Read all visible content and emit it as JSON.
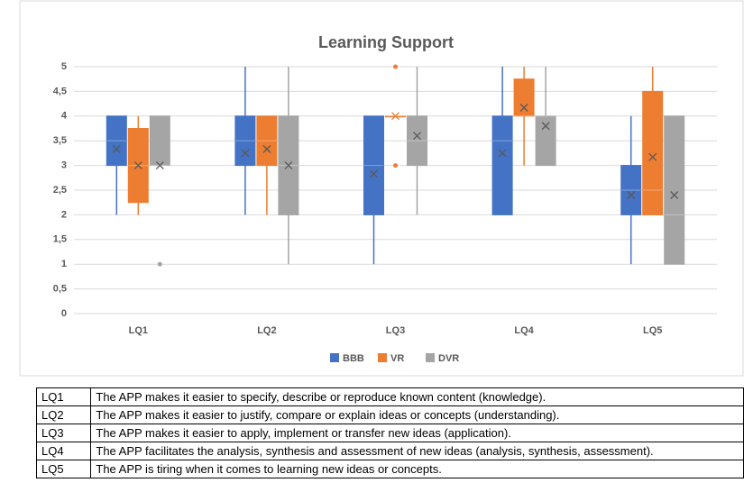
{
  "chart_data": {
    "type": "box",
    "title": "Learning Support",
    "categories": [
      "LQ1",
      "LQ2",
      "LQ3",
      "LQ4",
      "LQ5"
    ],
    "ylim": [
      0,
      5
    ],
    "yticks": [
      0,
      {
        "value": 0.5,
        "label": "0,5"
      },
      1,
      {
        "value": 1.5,
        "label": "1,5"
      },
      2,
      {
        "value": 2.5,
        "label": "2,5"
      },
      3,
      {
        "value": 3.5,
        "label": "3,5"
      },
      4,
      {
        "value": 4.5,
        "label": "4,5"
      },
      5
    ],
    "grid": true,
    "legend": "bottom",
    "series": [
      {
        "name": "BBB",
        "color": "#4472c4",
        "min": [
          2,
          2,
          1,
          2,
          1
        ],
        "q1": [
          3,
          3,
          2,
          2,
          2
        ],
        "median": [
          3.5,
          3.5,
          3,
          3.5,
          2.5
        ],
        "q3": [
          4,
          4,
          4,
          4,
          3
        ],
        "max": [
          4,
          5,
          4,
          5,
          4
        ],
        "mean": [
          3.33,
          3.25,
          2.83,
          3.25,
          2.4
        ],
        "outliers": [
          [],
          [],
          [],
          [],
          []
        ]
      },
      {
        "name": "VR",
        "color": "#ed7d31",
        "min": [
          2,
          2,
          4,
          3,
          2
        ],
        "q1": [
          2.25,
          3,
          4,
          4,
          2
        ],
        "median": [
          3,
          3.5,
          4,
          4,
          2.5
        ],
        "q3": [
          3.75,
          4,
          4,
          4.75,
          4.5
        ],
        "max": [
          4,
          4,
          4,
          5,
          5
        ],
        "mean": [
          3,
          3.33,
          4,
          4.17,
          3.17
        ],
        "outliers": [
          [],
          [],
          [
            5,
            3
          ],
          [],
          []
        ]
      },
      {
        "name": "DVR",
        "color": "#a5a5a5",
        "min": [
          3,
          1,
          2,
          3,
          1
        ],
        "q1": [
          3,
          2,
          3,
          3,
          1
        ],
        "median": [
          3,
          3,
          3.5,
          4,
          2
        ],
        "q3": [
          4,
          4,
          4,
          4,
          4
        ],
        "max": [
          4,
          5,
          5,
          5,
          4
        ],
        "mean": [
          3,
          3,
          3.6,
          3.8,
          2.4
        ],
        "outliers": [
          [
            1
          ],
          [],
          [],
          [],
          []
        ]
      }
    ]
  },
  "table": {
    "rows": [
      [
        "LQ1",
        "The APP makes it easier to specify, describe or reproduce known content (knowledge)."
      ],
      [
        "LQ2",
        "The APP makes it easier to justify, compare or explain ideas or concepts (understanding)."
      ],
      [
        "LQ3",
        "The APP makes it easier to apply, implement or transfer new ideas (application)."
      ],
      [
        "LQ4",
        "The APP facilitates the analysis, synthesis and assessment of new ideas (analysis, synthesis, assessment)."
      ],
      [
        "LQ5",
        "The APP is tiring when it comes to learning new ideas or concepts."
      ]
    ]
  }
}
